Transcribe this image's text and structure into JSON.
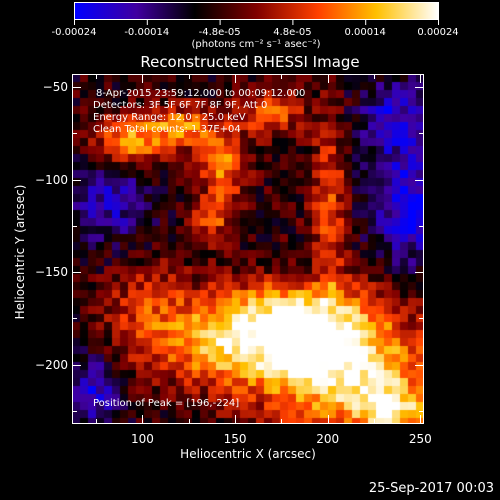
{
  "colorbar": {
    "tick_labels": [
      "-0.00024",
      "-0.00014",
      "-4.8e-05",
      "4.8e-05",
      "0.00014",
      "0.00024"
    ],
    "units": "(photons cm⁻² s⁻¹ asec⁻²)",
    "colors": [
      "#0000ff",
      "#4000a0",
      "#000000",
      "#800000",
      "#ff4000",
      "#ffc000",
      "#ffffff"
    ]
  },
  "plot": {
    "title": "Reconstructed RHESSI Image",
    "info_lines": [
      "8-Apr-2015 23:59:12.000 to 00:09:12.000",
      "Detectors: 3F 5F 6F 7F 8F 9F, Att 0",
      "Energy Range: 12.0 - 25.0 keV",
      "Clean     Total counts: 1.37E+04"
    ],
    "peak_text": "Position of Peak = [196,-224]"
  },
  "chart_data": {
    "type": "heatmap",
    "title": "Reconstructed RHESSI Image",
    "xlabel": "Heliocentric X (arcsec)",
    "ylabel": "Heliocentric Y (arcsec)",
    "xlim": [
      62,
      252
    ],
    "ylim": [
      -232,
      -43
    ],
    "x_ticks": [
      100,
      150,
      200,
      250
    ],
    "y_ticks": [
      -50,
      -100,
      -150,
      -200
    ],
    "colorbar_range": [
      -0.00024,
      0.00024
    ],
    "peak_position": [
      196,
      -224
    ]
  },
  "footer": {
    "date": "25-Sep-2017 00:03"
  }
}
